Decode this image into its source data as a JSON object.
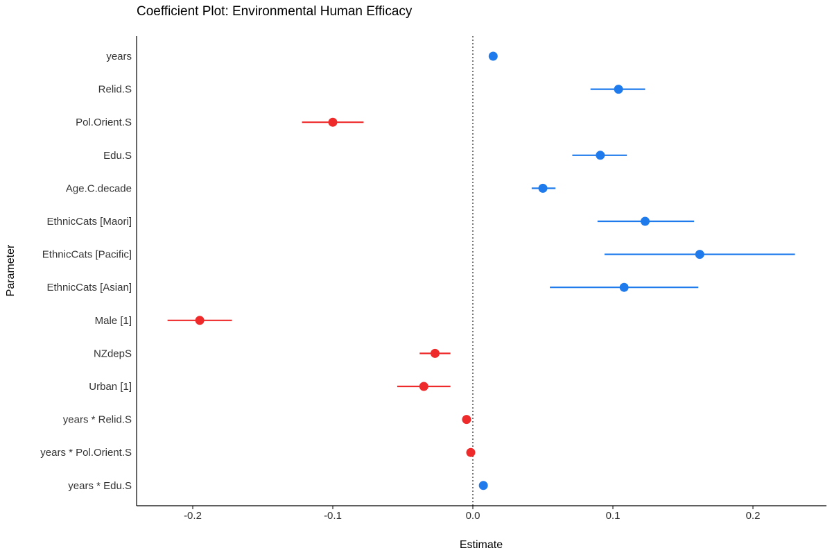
{
  "chart_data": {
    "type": "scatter",
    "subtype": "coefficient-plot-with-error-bars",
    "title": "Coefficient Plot: Environmental Human Efficacy",
    "xlabel": "Estimate",
    "ylabel": "Parameter",
    "xlim": [
      -0.24,
      0.25
    ],
    "x_ticks": [
      -0.2,
      -0.1,
      0.0,
      0.1,
      0.2
    ],
    "x_tick_labels": [
      "-0.2",
      "-0.1",
      "0.0",
      "0.1",
      "0.2"
    ],
    "reference_line": 0,
    "grid": false,
    "legend": "none",
    "colors": {
      "positive": "#1F7BEB",
      "negative": "#EE2A2A",
      "axis": "#000000",
      "reference": "#333333"
    },
    "parameters": [
      {
        "label": "years",
        "estimate": 0.0145,
        "low": 0.0115,
        "high": 0.0175
      },
      {
        "label": "Relid.S",
        "estimate": 0.104,
        "low": 0.084,
        "high": 0.123
      },
      {
        "label": "Pol.Orient.S",
        "estimate": -0.1,
        "low": -0.122,
        "high": -0.078
      },
      {
        "label": "Edu.S",
        "estimate": 0.091,
        "low": 0.071,
        "high": 0.11
      },
      {
        "label": "Age.C.decade",
        "estimate": 0.05,
        "low": 0.042,
        "high": 0.059
      },
      {
        "label": "EthnicCats [Maori]",
        "estimate": 0.123,
        "low": 0.089,
        "high": 0.158
      },
      {
        "label": "EthnicCats [Pacific]",
        "estimate": 0.162,
        "low": 0.094,
        "high": 0.23
      },
      {
        "label": "EthnicCats [Asian]",
        "estimate": 0.108,
        "low": 0.055,
        "high": 0.161
      },
      {
        "label": "Male [1]",
        "estimate": -0.195,
        "low": -0.218,
        "high": -0.172
      },
      {
        "label": "NZdepS",
        "estimate": -0.027,
        "low": -0.038,
        "high": -0.016
      },
      {
        "label": "Urban [1]",
        "estimate": -0.035,
        "low": -0.054,
        "high": -0.016
      },
      {
        "label": "years * Relid.S",
        "estimate": -0.0045,
        "low": -0.006,
        "high": -0.003
      },
      {
        "label": "years * Pol.Orient.S",
        "estimate": -0.0015,
        "low": -0.0025,
        "high": -0.0005
      },
      {
        "label": "years * Edu.S",
        "estimate": 0.0075,
        "low": 0.0065,
        "high": 0.0085
      }
    ]
  }
}
